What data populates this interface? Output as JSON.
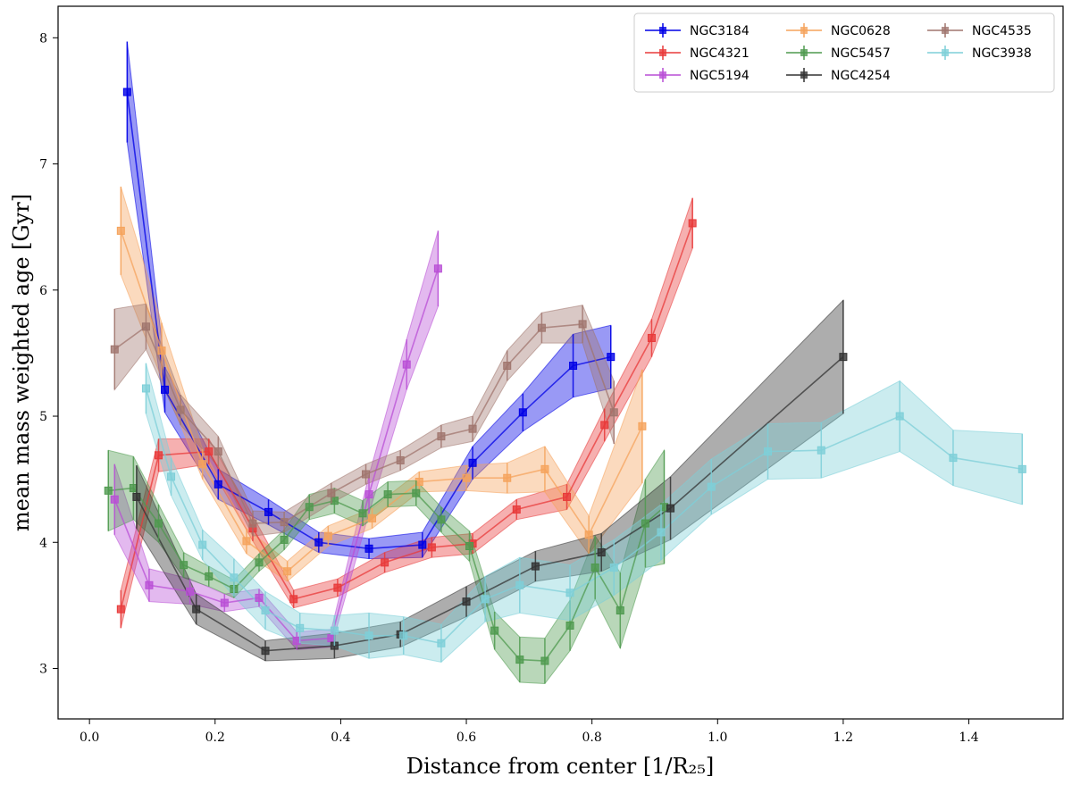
{
  "chart_data": {
    "type": "line",
    "xlabel": "Distance from center [1/R₂₅]",
    "ylabel": "mean mass weighted age [Gyr]",
    "xlim": [
      -0.05,
      1.55
    ],
    "ylim": [
      2.6,
      8.25
    ],
    "xticks": [
      "0.0",
      "0.2",
      "0.4",
      "0.6",
      "0.8",
      "1.0",
      "1.2",
      "1.4"
    ],
    "xtick_values": [
      0.0,
      0.2,
      0.4,
      0.6,
      0.8,
      1.0,
      1.2,
      1.4
    ],
    "yticks": [
      "3",
      "4",
      "5",
      "6",
      "7",
      "8"
    ],
    "ytick_values": [
      3,
      4,
      5,
      6,
      7,
      8
    ],
    "legend_position": "top-right",
    "series": [
      {
        "name": "NGC3184",
        "color": "#0000e6",
        "x": [
          0.06,
          0.12,
          0.205,
          0.285,
          0.365,
          0.445,
          0.53,
          0.61,
          0.69,
          0.77,
          0.83
        ],
        "y": [
          7.57,
          5.21,
          4.46,
          4.24,
          4.0,
          3.95,
          3.98,
          4.63,
          5.03,
          5.4,
          5.47
        ],
        "err": [
          0.4,
          0.18,
          0.12,
          0.1,
          0.08,
          0.08,
          0.1,
          0.13,
          0.15,
          0.25,
          0.25
        ]
      },
      {
        "name": "NGC4321",
        "color": "#e83a3a",
        "x": [
          0.05,
          0.11,
          0.19,
          0.26,
          0.325,
          0.395,
          0.47,
          0.545,
          0.61,
          0.68,
          0.76,
          0.82,
          0.895,
          0.96
        ],
        "y": [
          3.47,
          4.69,
          4.72,
          4.11,
          3.55,
          3.64,
          3.84,
          3.96,
          3.99,
          4.26,
          4.36,
          4.93,
          5.62,
          6.53
        ],
        "err": [
          0.15,
          0.13,
          0.1,
          0.1,
          0.07,
          0.07,
          0.08,
          0.08,
          0.08,
          0.08,
          0.1,
          0.13,
          0.15,
          0.2
        ]
      },
      {
        "name": "NGC5194",
        "color": "#b94fd6",
        "x": [
          0.04,
          0.095,
          0.16,
          0.215,
          0.27,
          0.33,
          0.385,
          0.445,
          0.505,
          0.555
        ],
        "y": [
          4.34,
          3.66,
          3.61,
          3.52,
          3.56,
          3.22,
          3.24,
          4.38,
          5.41,
          6.17
        ],
        "err": [
          0.28,
          0.13,
          0.1,
          0.07,
          0.07,
          0.07,
          0.07,
          0.15,
          0.2,
          0.3
        ]
      },
      {
        "name": "NGC0628",
        "color": "#f5a35c",
        "x": [
          0.05,
          0.115,
          0.18,
          0.25,
          0.315,
          0.38,
          0.45,
          0.525,
          0.6,
          0.665,
          0.725,
          0.795,
          0.88
        ],
        "y": [
          6.47,
          5.52,
          4.62,
          4.01,
          3.77,
          4.05,
          4.19,
          4.48,
          4.51,
          4.51,
          4.58,
          4.06,
          4.92
        ],
        "err": [
          0.35,
          0.22,
          0.12,
          0.1,
          0.08,
          0.08,
          0.08,
          0.08,
          0.1,
          0.12,
          0.18,
          0.15,
          0.45
        ]
      },
      {
        "name": "NGC5457",
        "color": "#4f9a4f",
        "x": [
          0.03,
          0.07,
          0.11,
          0.15,
          0.19,
          0.23,
          0.27,
          0.31,
          0.35,
          0.39,
          0.435,
          0.475,
          0.52,
          0.56,
          0.605,
          0.645,
          0.685,
          0.725,
          0.765,
          0.805,
          0.845,
          0.885,
          0.915
        ],
        "y": [
          4.41,
          4.43,
          4.15,
          3.82,
          3.73,
          3.63,
          3.84,
          4.02,
          4.28,
          4.33,
          4.23,
          4.38,
          4.39,
          4.18,
          3.97,
          3.3,
          3.07,
          3.06,
          3.34,
          3.8,
          3.46,
          4.15,
          4.28
        ],
        "err": [
          0.32,
          0.25,
          0.15,
          0.1,
          0.08,
          0.07,
          0.07,
          0.08,
          0.1,
          0.1,
          0.1,
          0.1,
          0.1,
          0.1,
          0.12,
          0.15,
          0.18,
          0.18,
          0.2,
          0.25,
          0.3,
          0.35,
          0.45
        ]
      },
      {
        "name": "NGC4254",
        "color": "#333333",
        "x": [
          0.075,
          0.17,
          0.28,
          0.39,
          0.495,
          0.6,
          0.71,
          0.815,
          0.925,
          1.2
        ],
        "y": [
          4.36,
          3.47,
          3.14,
          3.18,
          3.27,
          3.53,
          3.81,
          3.92,
          4.27,
          5.47
        ],
        "err": [
          0.25,
          0.12,
          0.08,
          0.1,
          0.1,
          0.12,
          0.12,
          0.15,
          0.25,
          0.45
        ]
      },
      {
        "name": "NGC4535",
        "color": "#a0766e",
        "x": [
          0.04,
          0.09,
          0.145,
          0.205,
          0.26,
          0.31,
          0.385,
          0.44,
          0.495,
          0.56,
          0.61,
          0.665,
          0.72,
          0.785,
          0.835
        ],
        "y": [
          5.53,
          5.71,
          5.05,
          4.72,
          4.15,
          4.16,
          4.39,
          4.54,
          4.65,
          4.84,
          4.9,
          5.4,
          5.7,
          5.73,
          5.03
        ],
        "err": [
          0.32,
          0.18,
          0.12,
          0.12,
          0.1,
          0.08,
          0.08,
          0.08,
          0.08,
          0.09,
          0.1,
          0.12,
          0.12,
          0.15,
          0.25
        ]
      },
      {
        "name": "NGC3938",
        "color": "#7ecfd8",
        "x": [
          0.09,
          0.13,
          0.18,
          0.23,
          0.28,
          0.335,
          0.39,
          0.445,
          0.5,
          0.56,
          0.63,
          0.685,
          0.765,
          0.835,
          0.91,
          0.99,
          1.08,
          1.165,
          1.29,
          1.375,
          1.485
        ],
        "y": [
          5.22,
          4.52,
          3.98,
          3.72,
          3.46,
          3.32,
          3.3,
          3.26,
          3.26,
          3.2,
          3.55,
          3.66,
          3.6,
          3.8,
          4.08,
          4.44,
          4.72,
          4.73,
          5.0,
          4.67,
          4.58
        ],
        "err": [
          0.2,
          0.15,
          0.12,
          0.15,
          0.15,
          0.12,
          0.12,
          0.18,
          0.15,
          0.15,
          0.18,
          0.22,
          0.22,
          0.22,
          0.22,
          0.22,
          0.22,
          0.22,
          0.28,
          0.22,
          0.28
        ]
      }
    ]
  }
}
